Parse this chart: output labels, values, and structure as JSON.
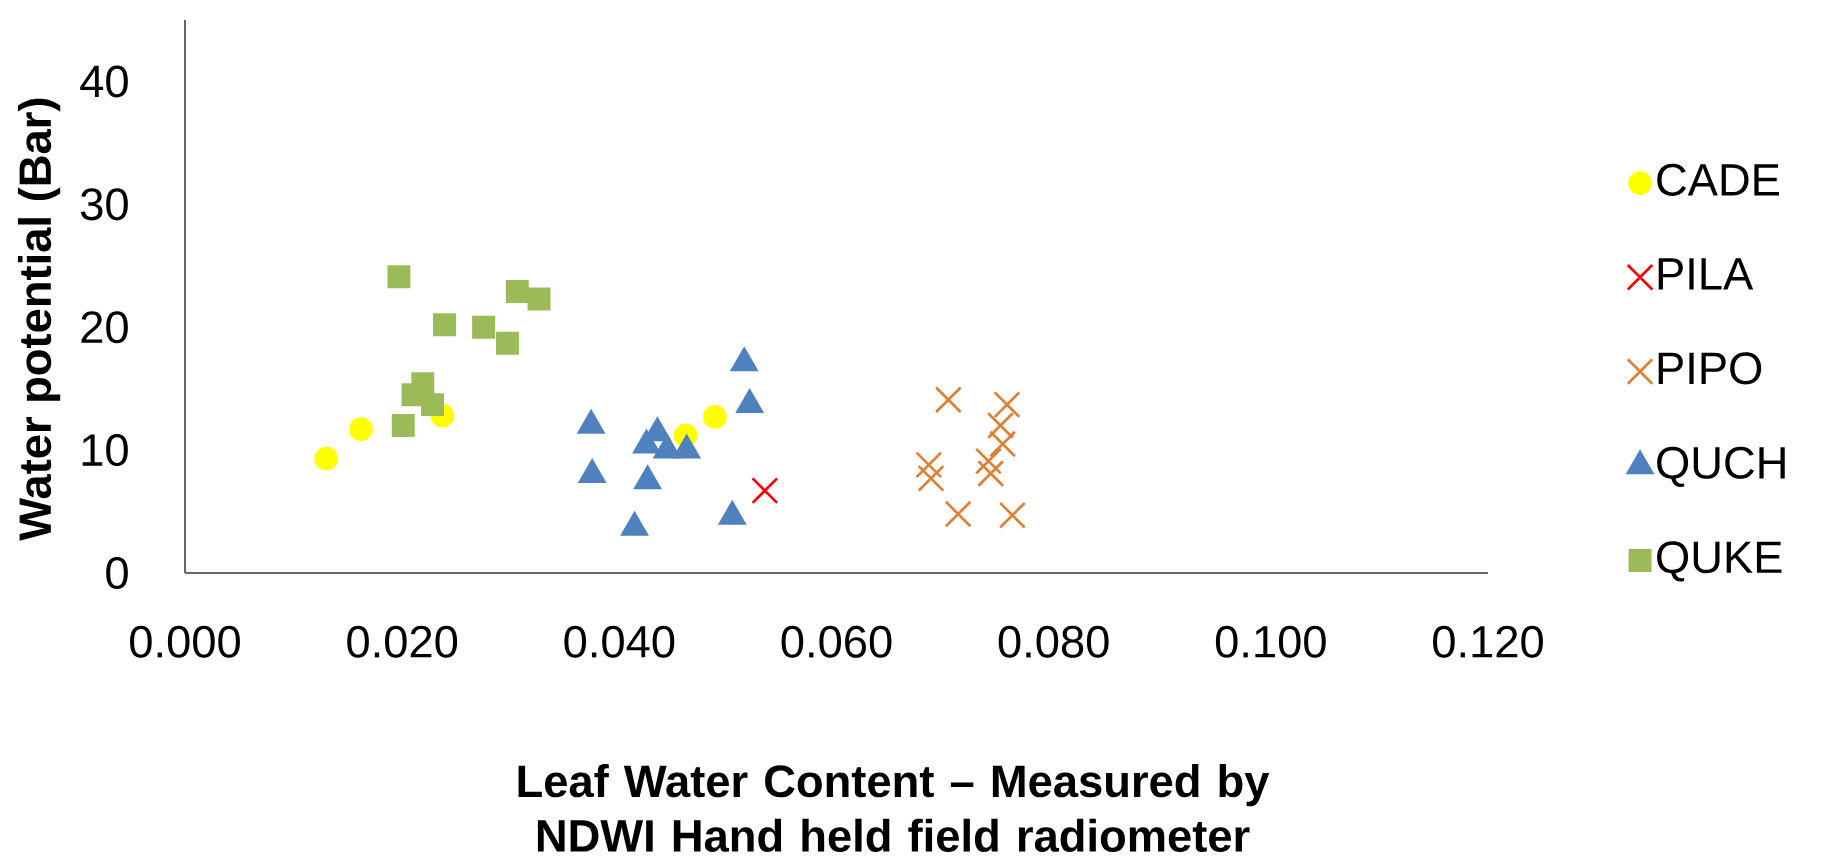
{
  "chart_data": {
    "type": "scatter",
    "xlabel": "Leaf Water Content – Measured by NDWI Hand held field radiometer",
    "ylabel": "Water potential (Bar)",
    "xlim": [
      0,
      0.12
    ],
    "ylim": [
      0,
      45
    ],
    "xticks": [
      {
        "value": 0,
        "label": "0.000"
      },
      {
        "value": 0.02,
        "label": "0.020"
      },
      {
        "value": 0.04,
        "label": "0.040"
      },
      {
        "value": 0.06,
        "label": "0.060"
      },
      {
        "value": 0.08,
        "label": "0.080"
      },
      {
        "value": 0.1,
        "label": "0.100"
      },
      {
        "value": 0.12,
        "label": "0.120"
      }
    ],
    "yticks": [
      0,
      10,
      20,
      30,
      40
    ],
    "grid": false,
    "legend": "right",
    "series": [
      {
        "name": "CADE",
        "color": "#ffff00",
        "marker": "circle",
        "x": [
          0.013,
          0.0162,
          0.0237,
          0.0461,
          0.0488
        ],
        "values": [
          9.3,
          11.7,
          12.8,
          11.2,
          12.7
        ]
      },
      {
        "name": "PILA",
        "color": "#ff0000",
        "marker": "cross",
        "x": [
          0.0534
        ],
        "values": [
          6.7
        ]
      },
      {
        "name": "PIPO",
        "color": "#e07f32",
        "marker": "cross",
        "x": [
          0.0703,
          0.0757,
          0.0751,
          0.0753,
          0.074,
          0.0742,
          0.0685,
          0.0687,
          0.0712,
          0.0762
        ],
        "values": [
          14.1,
          13.7,
          12.0,
          10.5,
          9.1,
          8.1,
          8.8,
          7.7,
          4.8,
          4.7
        ]
      },
      {
        "name": "QUCH",
        "color": "#4f81bd",
        "marker": "triangle",
        "x": [
          0.0374,
          0.0375,
          0.0414,
          0.0425,
          0.0426,
          0.0435,
          0.0444,
          0.0462,
          0.0504,
          0.0515,
          0.052
        ],
        "values": [
          12.0,
          8.0,
          3.7,
          10.4,
          7.5,
          11.4,
          10.0,
          10.0,
          4.6,
          17.1,
          13.7
        ]
      },
      {
        "name": "QUKE",
        "color": "#9bbb59",
        "marker": "square",
        "x": [
          0.0197,
          0.0306,
          0.0326,
          0.0239,
          0.0275,
          0.0297,
          0.0219,
          0.021,
          0.0228,
          0.0201
        ],
        "values": [
          24.1,
          22.9,
          22.3,
          20.2,
          20.0,
          18.7,
          15.4,
          14.5,
          13.7,
          12.0
        ]
      }
    ]
  }
}
